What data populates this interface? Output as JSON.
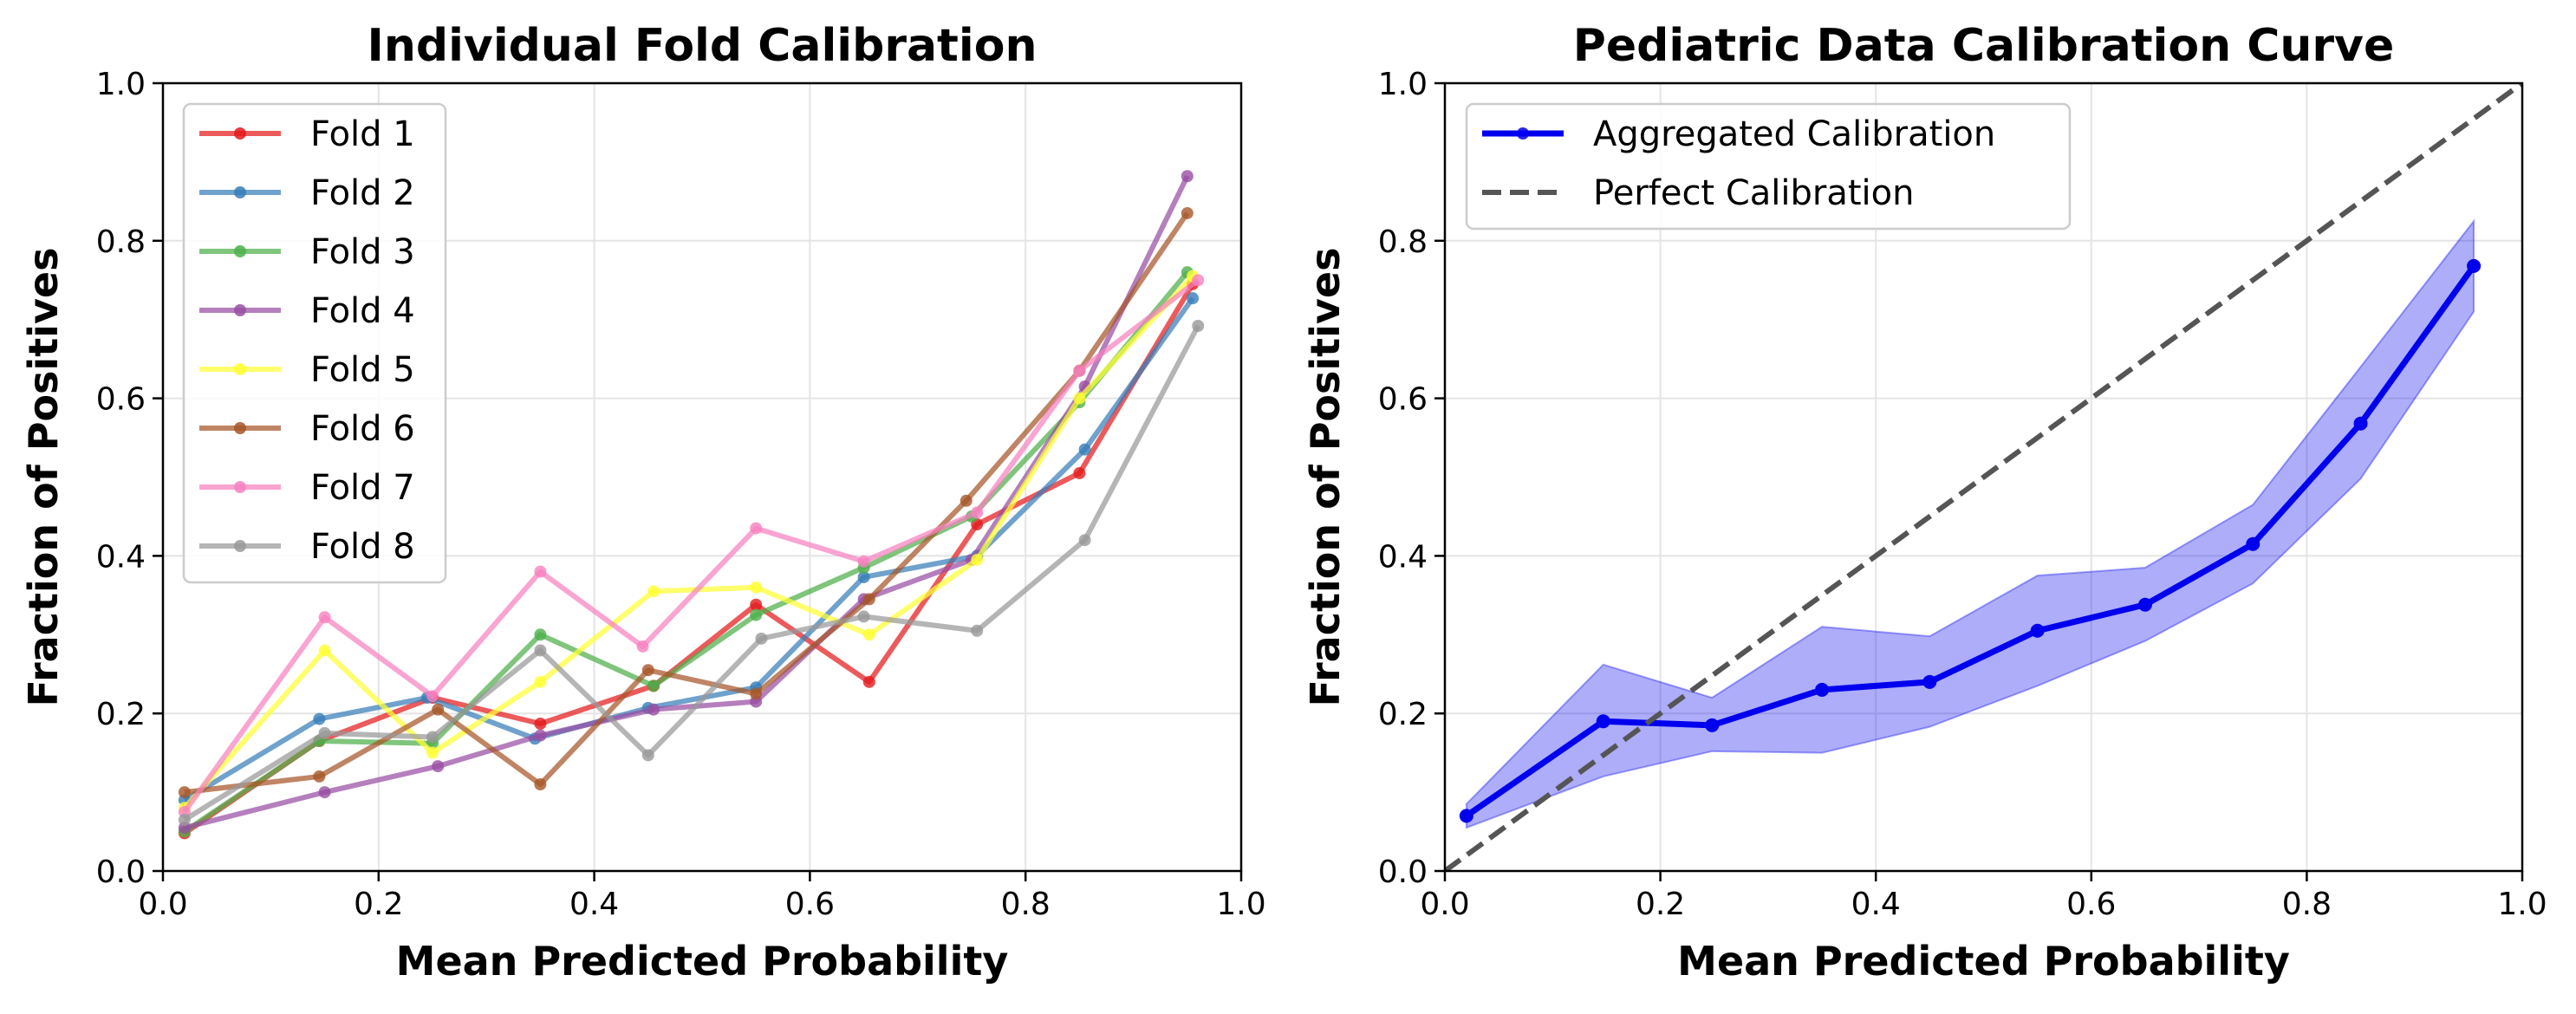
{
  "chart_data": [
    {
      "type": "line",
      "title": "Individual Fold Calibration",
      "xlabel": "Mean Predicted Probability",
      "ylabel": "Fraction of Positives",
      "xlim": [
        0,
        1
      ],
      "ylim": [
        0,
        1
      ],
      "xticks": [
        "0.0",
        "0.2",
        "0.4",
        "0.6",
        "0.8",
        "1.0"
      ],
      "yticks": [
        "0.0",
        "0.2",
        "0.4",
        "0.6",
        "0.8",
        "1.0"
      ],
      "grid": true,
      "legend_position": "upper-left",
      "series": [
        {
          "name": "Fold 1",
          "color": "#e41a1c",
          "x": [
            0.02,
            0.145,
            0.25,
            0.35,
            0.455,
            0.55,
            0.655,
            0.755,
            0.85,
            0.955
          ],
          "y": [
            0.048,
            0.165,
            0.22,
            0.187,
            0.235,
            0.338,
            0.24,
            0.44,
            0.505,
            0.745
          ]
        },
        {
          "name": "Fold 2",
          "color": "#377eb8",
          "x": [
            0.02,
            0.145,
            0.245,
            0.345,
            0.45,
            0.55,
            0.65,
            0.755,
            0.855,
            0.955
          ],
          "y": [
            0.09,
            0.193,
            0.22,
            0.168,
            0.207,
            0.233,
            0.373,
            0.4,
            0.535,
            0.727
          ]
        },
        {
          "name": "Fold 3",
          "color": "#4daf4a",
          "x": [
            0.02,
            0.145,
            0.25,
            0.35,
            0.455,
            0.55,
            0.65,
            0.75,
            0.85,
            0.95
          ],
          "y": [
            0.05,
            0.165,
            0.162,
            0.3,
            0.235,
            0.325,
            0.385,
            0.45,
            0.595,
            0.76
          ]
        },
        {
          "name": "Fold 4",
          "color": "#984ea3",
          "x": [
            0.02,
            0.15,
            0.255,
            0.35,
            0.455,
            0.55,
            0.65,
            0.75,
            0.855,
            0.95
          ],
          "y": [
            0.055,
            0.1,
            0.133,
            0.172,
            0.205,
            0.215,
            0.345,
            0.395,
            0.615,
            0.882
          ]
        },
        {
          "name": "Fold 5",
          "color": "#ffff33",
          "x": [
            0.02,
            0.15,
            0.25,
            0.35,
            0.455,
            0.55,
            0.655,
            0.755,
            0.85,
            0.955
          ],
          "y": [
            0.08,
            0.28,
            0.15,
            0.24,
            0.355,
            0.36,
            0.3,
            0.395,
            0.6,
            0.755
          ]
        },
        {
          "name": "Fold 6",
          "color": "#a65628",
          "x": [
            0.02,
            0.145,
            0.255,
            0.35,
            0.45,
            0.55,
            0.655,
            0.745,
            0.85,
            0.95
          ],
          "y": [
            0.1,
            0.12,
            0.205,
            0.11,
            0.255,
            0.225,
            0.345,
            0.47,
            0.635,
            0.835
          ]
        },
        {
          "name": "Fold 7",
          "color": "#f781bf",
          "x": [
            0.02,
            0.15,
            0.25,
            0.35,
            0.445,
            0.55,
            0.65,
            0.755,
            0.85,
            0.96
          ],
          "y": [
            0.075,
            0.322,
            0.222,
            0.38,
            0.285,
            0.435,
            0.393,
            0.455,
            0.635,
            0.75
          ]
        },
        {
          "name": "Fold 8",
          "color": "#999999",
          "x": [
            0.02,
            0.15,
            0.25,
            0.35,
            0.45,
            0.555,
            0.65,
            0.755,
            0.855,
            0.96
          ],
          "y": [
            0.065,
            0.175,
            0.17,
            0.28,
            0.147,
            0.295,
            0.323,
            0.305,
            0.42,
            0.692
          ]
        }
      ]
    },
    {
      "type": "line",
      "title": "Pediatric Data Calibration Curve",
      "xlabel": "Mean Predicted Probability",
      "ylabel": "Fraction of Positives",
      "xlim": [
        0,
        1
      ],
      "ylim": [
        0,
        1
      ],
      "xticks": [
        "0.0",
        "0.2",
        "0.4",
        "0.6",
        "0.8",
        "1.0"
      ],
      "yticks": [
        "0.0",
        "0.2",
        "0.4",
        "0.6",
        "0.8",
        "1.0"
      ],
      "grid": true,
      "legend_position": "upper-left",
      "series": [
        {
          "name": "Aggregated Calibration",
          "color": "#0000ee",
          "x": [
            0.02,
            0.147,
            0.248,
            0.35,
            0.45,
            0.55,
            0.65,
            0.75,
            0.85,
            0.955
          ],
          "y": [
            0.07,
            0.19,
            0.185,
            0.23,
            0.24,
            0.305,
            0.338,
            0.415,
            0.568,
            0.768
          ],
          "band_upper": [
            0.085,
            0.262,
            0.22,
            0.31,
            0.298,
            0.375,
            0.385,
            0.465,
            0.64,
            0.825
          ],
          "band_lower": [
            0.055,
            0.12,
            0.152,
            0.15,
            0.183,
            0.235,
            0.292,
            0.365,
            0.498,
            0.71
          ]
        },
        {
          "name": "Perfect Calibration",
          "color": "#555555",
          "style": "dashed",
          "x": [
            0,
            1
          ],
          "y": [
            0,
            1
          ]
        }
      ]
    }
  ]
}
